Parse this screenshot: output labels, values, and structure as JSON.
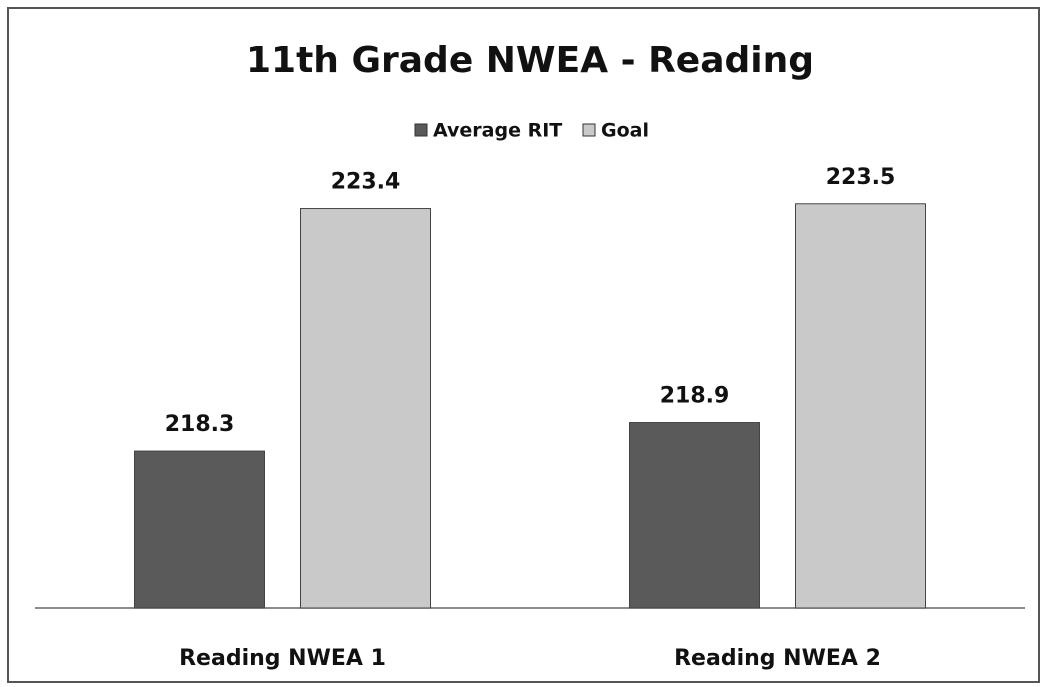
{
  "chart_data": {
    "type": "bar",
    "title": "11th Grade NWEA - Reading",
    "categories": [
      "Reading NWEA 1",
      "Reading NWEA 2"
    ],
    "series": [
      {
        "name": "Average RIT",
        "color": "#5a5a5a",
        "values": [
          218.3,
          218.9
        ]
      },
      {
        "name": "Goal",
        "color": "#c9c9c9",
        "values": [
          223.4,
          223.5
        ]
      }
    ],
    "ylim": [
      215,
      224
    ],
    "grid": false,
    "legend": "top"
  }
}
